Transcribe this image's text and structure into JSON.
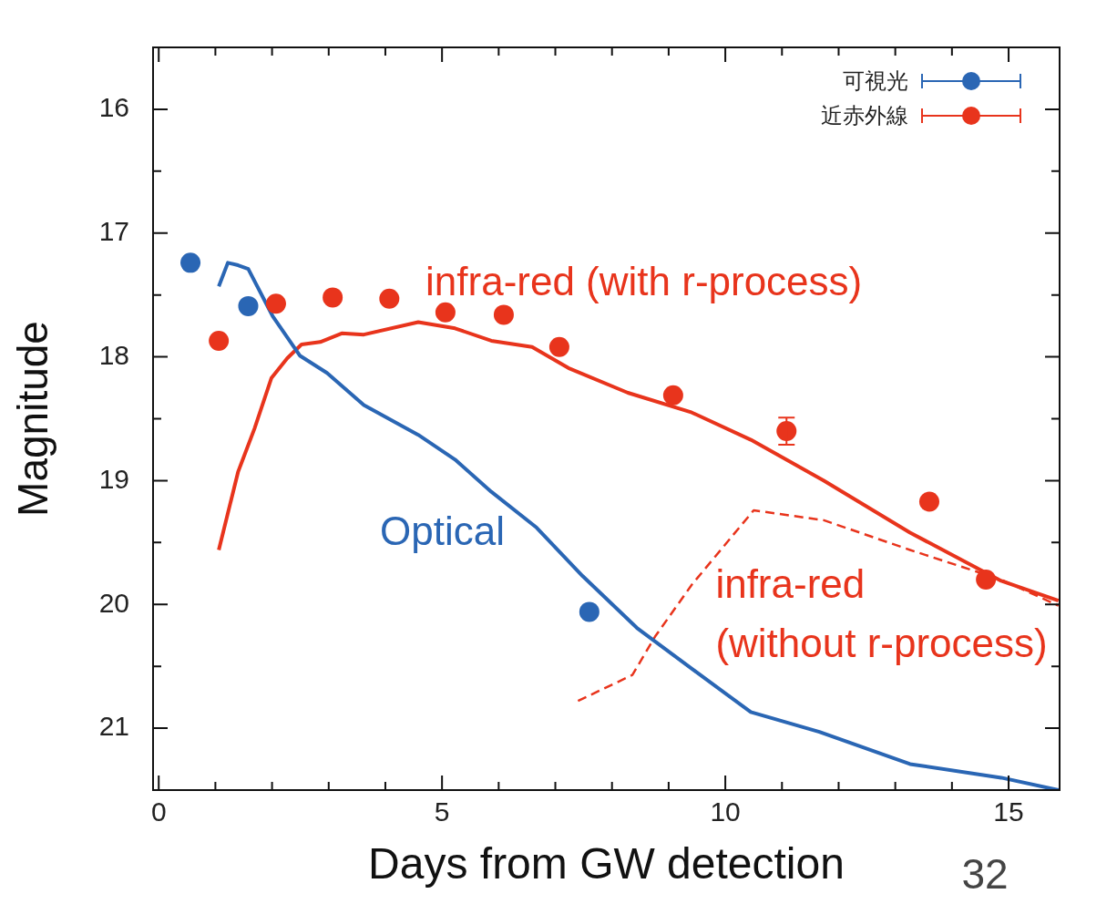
{
  "chart_data": {
    "type": "line",
    "xlabel": "Days from GW detection",
    "ylabel": "Magnitude",
    "xlim": [
      -0.1,
      15.9
    ],
    "xticks": [
      0,
      {
        "value": 1,
        "label": null
      },
      {
        "value": 2,
        "label": null
      },
      {
        "value": 3,
        "label": null
      },
      {
        "value": 4,
        "label": null
      },
      5,
      {
        "value": 6,
        "label": null
      },
      {
        "value": 7,
        "label": null
      },
      {
        "value": 8,
        "label": null
      },
      {
        "value": 9,
        "label": null
      },
      10,
      {
        "value": 11,
        "label": null
      },
      {
        "value": 12,
        "label": null
      },
      {
        "value": 13,
        "label": null
      },
      {
        "value": 14,
        "label": null
      },
      15
    ],
    "ylim": [
      21.5,
      15.5
    ],
    "yticks": [
      16,
      {
        "value": 16.5,
        "label": null
      },
      17,
      {
        "value": 17.5,
        "label": null
      },
      18,
      {
        "value": 18.5,
        "label": null
      },
      19,
      {
        "value": 19.5,
        "label": null
      },
      20,
      {
        "value": 20.5,
        "label": null
      },
      21
    ],
    "grid": false,
    "legend": "top right",
    "annotations": [
      "32"
    ],
    "series": [
      {
        "type": "scatter",
        "name": "可視光",
        "color": "#2a66b4",
        "marker": "circle",
        "x": [
          0.56,
          1.58,
          7.6
        ],
        "values": [
          17.24,
          17.59,
          20.06
        ]
      },
      {
        "type": "scatter",
        "name": "近赤外線",
        "color": "#e8341c",
        "marker": "circle",
        "x": [
          1.06,
          2.07,
          3.07,
          4.07,
          5.06,
          6.09,
          7.07,
          9.08,
          11.08,
          13.6,
          14.6
        ],
        "values": [
          17.87,
          17.57,
          17.52,
          17.53,
          17.64,
          17.66,
          17.92,
          18.31,
          18.6,
          19.17,
          19.8
        ],
        "errors": [
          null,
          null,
          null,
          null,
          null,
          null,
          null,
          null,
          0.11,
          null,
          null
        ]
      },
      {
        "type": "line",
        "name": "Optical",
        "color": "#2a66b4",
        "marker": "none",
        "line_style": "solid",
        "x": [
          1.06,
          1.22,
          1.4,
          1.58,
          2.01,
          2.49,
          2.97,
          3.62,
          4.58,
          5.23,
          5.87,
          6.67,
          7.48,
          8.44,
          9.41,
          10.45,
          11.66,
          13.26,
          14.87,
          15.88
        ],
        "values": [
          17.43,
          17.24,
          17.26,
          17.29,
          17.67,
          17.99,
          18.13,
          18.39,
          18.63,
          18.83,
          19.09,
          19.38,
          19.77,
          20.19,
          20.52,
          20.87,
          21.03,
          21.29,
          21.4,
          21.5
        ]
      },
      {
        "type": "line",
        "name": "infra-red (with r-process)",
        "color": "#e8341c",
        "marker": "none",
        "line_style": "solid",
        "x": [
          1.06,
          1.4,
          1.69,
          1.99,
          2.27,
          2.52,
          2.85,
          3.23,
          3.62,
          4.58,
          5.23,
          5.87,
          6.59,
          7.23,
          8.28,
          9.41,
          10.45,
          11.74,
          13.26,
          14.87,
          15.88
        ],
        "values": [
          19.56,
          18.93,
          18.58,
          18.17,
          18.01,
          17.9,
          17.88,
          17.81,
          17.82,
          17.72,
          17.77,
          17.87,
          17.92,
          18.09,
          18.29,
          18.45,
          18.67,
          19.0,
          19.42,
          19.81,
          19.97
        ]
      },
      {
        "type": "line",
        "name": "infra-red (without r-process)",
        "color": "#e8341c",
        "marker": "none",
        "line_style": "dashed",
        "x": [
          7.4,
          8.36,
          8.76,
          9.41,
          10.5,
          11.74,
          13.26,
          14.87,
          15.88
        ],
        "values": [
          20.78,
          20.57,
          20.26,
          19.84,
          19.24,
          19.32,
          19.56,
          19.8,
          20.01
        ]
      }
    ]
  }
}
